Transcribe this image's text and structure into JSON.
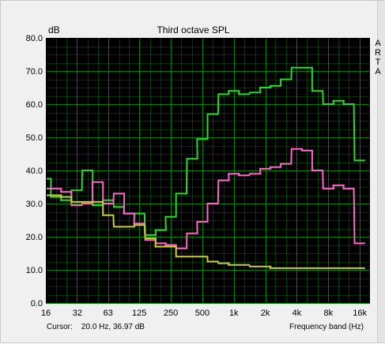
{
  "window": {
    "unit_label": "dB",
    "title": "Third octave SPL",
    "side_label": [
      "A",
      "R",
      "T",
      "A"
    ],
    "cursor_label": "Cursor:",
    "cursor_value": "20.0 Hz, 36.97 dB",
    "x_unit_label": "Frequency band (Hz)"
  },
  "chart_data": {
    "type": "line",
    "step": true,
    "title": "Third octave SPL",
    "xlabel": "Frequency band (Hz)",
    "ylabel": "dB",
    "x_scale": "log",
    "ylim": [
      0,
      80
    ],
    "xlim": [
      16,
      20000
    ],
    "grid": true,
    "y_ticks": [
      "0.0",
      "10.0",
      "20.0",
      "30.0",
      "40.0",
      "50.0",
      "60.0",
      "70.0",
      "80.0"
    ],
    "x_ticks": [
      {
        "value": 16,
        "label": "16"
      },
      {
        "value": 32,
        "label": "32"
      },
      {
        "value": 63,
        "label": "63"
      },
      {
        "value": 125,
        "label": "125"
      },
      {
        "value": 250,
        "label": "250"
      },
      {
        "value": 500,
        "label": "500"
      },
      {
        "value": 1000,
        "label": "1k"
      },
      {
        "value": 2000,
        "label": "2k"
      },
      {
        "value": 4000,
        "label": "4k"
      },
      {
        "value": 8000,
        "label": "8k"
      },
      {
        "value": 16000,
        "label": "16k"
      }
    ],
    "bands": [
      16,
      20,
      25,
      31.5,
      40,
      50,
      63,
      80,
      100,
      125,
      160,
      200,
      250,
      315,
      400,
      500,
      630,
      800,
      1000,
      1250,
      1600,
      2000,
      2500,
      3150,
      4000,
      5000,
      6300,
      8000,
      10000,
      12500,
      16000
    ],
    "colors": {
      "background": "#000000",
      "grid": "#008000",
      "series": [
        "#22dd22",
        "#ff66cc",
        "#cccc33"
      ]
    },
    "series": [
      {
        "color": "#22dd22",
        "values": [
          37.5,
          32,
          31,
          34,
          40,
          29.5,
          31,
          29,
          27,
          27,
          20.5,
          22,
          26,
          33,
          43.5,
          49.5,
          57,
          63,
          64,
          63,
          63.5,
          65,
          65.5,
          67.5,
          71,
          71,
          64,
          60,
          61,
          60,
          43
        ]
      },
      {
        "color": "#ff66cc",
        "values": [
          34.5,
          34.5,
          33.5,
          29.5,
          30,
          36.5,
          30,
          33,
          27,
          24,
          19,
          18,
          17.5,
          16.5,
          21,
          24.5,
          30,
          37,
          39,
          38.5,
          39,
          40.5,
          41,
          42,
          46.5,
          46,
          40,
          34.5,
          35.5,
          34.5,
          18
        ]
      },
      {
        "color": "#cccc33",
        "values": [
          32.5,
          32.5,
          32,
          30.5,
          30.5,
          30.5,
          26.5,
          23,
          23,
          23.5,
          19.5,
          17,
          17,
          14,
          14,
          14,
          12.5,
          12,
          11.5,
          11.5,
          11,
          11,
          10.5,
          10.5,
          10.5,
          10.5,
          10.5,
          10.5,
          10.5,
          10.5,
          10.5
        ]
      }
    ]
  }
}
